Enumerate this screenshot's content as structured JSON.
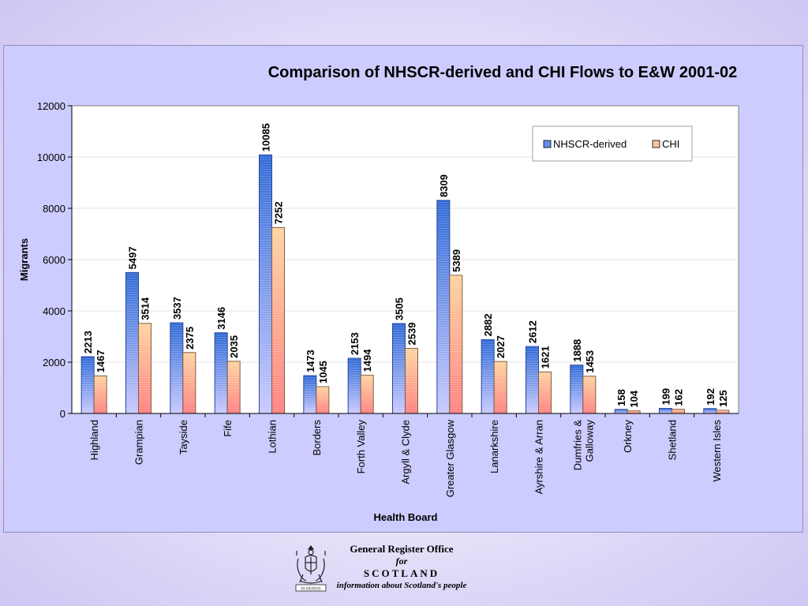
{
  "chart_data": {
    "type": "bar",
    "title": "Comparison of NHSCR-derived and CHI Flows to E&W 2001-02",
    "xlabel": "Health Board",
    "ylabel": "Migrants",
    "ylim": [
      0,
      12000
    ],
    "yticks": [
      0,
      2000,
      4000,
      6000,
      8000,
      10000,
      12000
    ],
    "grid": true,
    "legend_position": "top-right",
    "categories": [
      [
        "Highland"
      ],
      [
        "Grampian"
      ],
      [
        "Tayside"
      ],
      [
        "Fife"
      ],
      [
        "Lothian"
      ],
      [
        "Borders"
      ],
      [
        "Forth Valley"
      ],
      [
        "Argyll & Clyde"
      ],
      [
        "Greater Glasgow"
      ],
      [
        "Lanarkshire"
      ],
      [
        "Ayrshire & Arran"
      ],
      [
        "Dumfries &",
        "Galloway"
      ],
      [
        "Orkney"
      ],
      [
        "Shetland"
      ],
      [
        "Western Isles"
      ]
    ],
    "series": [
      {
        "name": "NHSCR-derived",
        "color_top": "#2f6ad6",
        "color_bottom": "#c9c9ff",
        "values": [
          2213,
          5497,
          3537,
          3146,
          10085,
          1473,
          2153,
          3505,
          8309,
          2882,
          2612,
          1888,
          158,
          199,
          192
        ]
      },
      {
        "name": "CHI",
        "color_top": "#ffd3a0",
        "color_bottom": "#ff8080",
        "values": [
          1467,
          3514,
          2375,
          2035,
          7252,
          1045,
          1494,
          2539,
          5389,
          2027,
          1621,
          1453,
          104,
          162,
          125
        ]
      }
    ]
  },
  "footer": {
    "line1": "General Register Office",
    "line2": "for",
    "line3": "SCOTLAND",
    "line4": "information about Scotland's people",
    "logo_text": "IN DEFENS",
    "logo_icon": "royal-arms-crest-icon"
  }
}
